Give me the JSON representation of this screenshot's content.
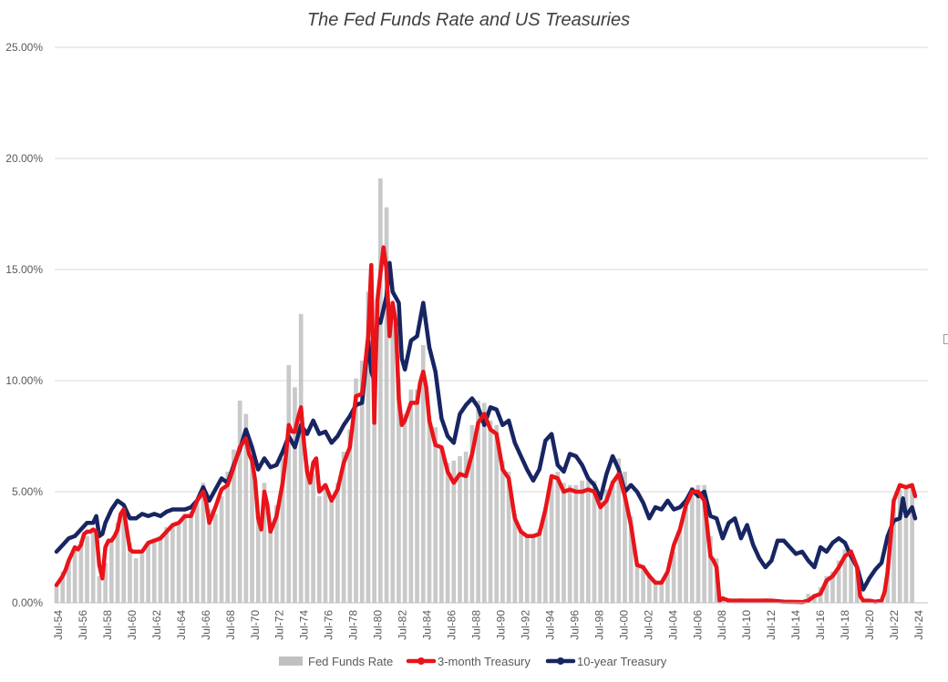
{
  "chart_data": {
    "type": "bar+line",
    "title": "The Fed Funds Rate and US Treasuries",
    "ylim": [
      0,
      25
    ],
    "y_ticks": [
      "0.00%",
      "5.00%",
      "10.00%",
      "15.00%",
      "20.00%",
      "25.00%"
    ],
    "x_ticks": [
      "Jul-54",
      "Jul-56",
      "Jul-58",
      "Jul-60",
      "Jul-62",
      "Jul-64",
      "Jul-66",
      "Jul-68",
      "Jul-70",
      "Jul-72",
      "Jul-74",
      "Jul-76",
      "Jul-78",
      "Jul-80",
      "Jul-82",
      "Jul-84",
      "Jul-86",
      "Jul-88",
      "Jul-90",
      "Jul-92",
      "Jul-94",
      "Jul-96",
      "Jul-98",
      "Jul-00",
      "Jul-02",
      "Jul-04",
      "Jul-06",
      "Jul-08",
      "Jul-10",
      "Jul-12",
      "Jul-14",
      "Jul-16",
      "Jul-18",
      "Jul-20",
      "Jul-22",
      "Jul-24"
    ],
    "x_range": [
      1954.5,
      2024.9
    ],
    "grid": true,
    "legend_position": "bottom",
    "colors": {
      "fed_funds": "#c0c0c0",
      "t3m": "#e8141a",
      "t10y": "#172562",
      "grid": "#d9d9d9"
    },
    "series": [
      {
        "name": "Fed Funds Rate",
        "kind": "bar",
        "x": [
          1954.5,
          1955.0,
          1955.5,
          1956.0,
          1956.5,
          1957.0,
          1957.5,
          1958.0,
          1958.5,
          1959.0,
          1959.5,
          1960.0,
          1960.5,
          1961.0,
          1961.5,
          1962.0,
          1962.5,
          1963.0,
          1963.5,
          1964.0,
          1964.5,
          1965.0,
          1965.5,
          1966.0,
          1966.5,
          1967.0,
          1967.5,
          1968.0,
          1968.5,
          1969.0,
          1969.5,
          1970.0,
          1970.5,
          1971.0,
          1971.5,
          1972.0,
          1972.5,
          1973.0,
          1973.5,
          1974.0,
          1974.5,
          1975.0,
          1975.5,
          1976.0,
          1976.5,
          1977.0,
          1977.5,
          1978.0,
          1978.5,
          1979.0,
          1979.5,
          1980.0,
          1980.5,
          1981.0,
          1981.5,
          1982.0,
          1982.5,
          1983.0,
          1983.5,
          1984.0,
          1984.5,
          1985.0,
          1985.5,
          1986.0,
          1986.5,
          1987.0,
          1987.5,
          1988.0,
          1988.5,
          1989.0,
          1989.5,
          1990.0,
          1990.5,
          1991.0,
          1991.5,
          1992.0,
          1992.5,
          1993.0,
          1993.5,
          1994.0,
          1994.5,
          1995.0,
          1995.5,
          1996.0,
          1996.5,
          1997.0,
          1997.5,
          1998.0,
          1998.5,
          1999.0,
          1999.5,
          2000.0,
          2000.5,
          2001.0,
          2001.5,
          2002.0,
          2002.5,
          2003.0,
          2003.5,
          2004.0,
          2004.5,
          2005.0,
          2005.5,
          2006.0,
          2006.5,
          2007.0,
          2007.5,
          2008.0,
          2008.5,
          2009.0,
          2009.5,
          2010.0,
          2010.5,
          2011.0,
          2011.5,
          2012.0,
          2012.5,
          2013.0,
          2013.5,
          2014.0,
          2014.5,
          2015.0,
          2015.5,
          2016.0,
          2016.5,
          2017.0,
          2017.5,
          2018.0,
          2018.5,
          2019.0,
          2019.5,
          2020.0,
          2020.5,
          2021.0,
          2021.5,
          2022.0,
          2022.5,
          2023.0,
          2023.5,
          2024.0,
          2024.5
        ],
        "values": [
          0.8,
          1.4,
          1.9,
          2.5,
          2.8,
          3.0,
          3.2,
          1.2,
          1.8,
          2.8,
          3.6,
          3.9,
          2.7,
          2.0,
          2.2,
          2.7,
          2.9,
          3.0,
          3.4,
          3.5,
          3.5,
          4.0,
          4.1,
          4.6,
          5.4,
          4.2,
          4.0,
          4.8,
          5.9,
          6.9,
          9.1,
          8.5,
          6.6,
          3.7,
          5.4,
          3.5,
          4.4,
          6.5,
          10.7,
          9.7,
          13.0,
          6.2,
          5.8,
          4.8,
          5.3,
          4.7,
          5.4,
          6.8,
          7.8,
          10.1,
          10.9,
          14.0,
          9.0,
          19.1,
          17.8,
          13.2,
          10.1,
          8.5,
          9.6,
          9.6,
          11.6,
          8.4,
          7.9,
          7.0,
          6.3,
          6.4,
          6.6,
          6.8,
          8.0,
          9.1,
          9.0,
          8.2,
          8.0,
          6.4,
          5.9,
          4.0,
          3.3,
          3.0,
          3.0,
          3.3,
          4.3,
          5.5,
          5.9,
          5.4,
          5.3,
          5.3,
          5.5,
          5.5,
          5.5,
          4.8,
          5.1,
          5.5,
          6.5,
          5.9,
          3.9,
          1.7,
          1.7,
          1.3,
          1.0,
          1.0,
          1.3,
          2.3,
          3.3,
          4.3,
          5.2,
          5.3,
          5.3,
          3.0,
          2.0,
          0.2,
          0.2,
          0.1,
          0.2,
          0.1,
          0.1,
          0.1,
          0.2,
          0.1,
          0.1,
          0.1,
          0.1,
          0.1,
          0.1,
          0.4,
          0.4,
          0.7,
          1.2,
          1.4,
          1.9,
          2.4,
          2.4,
          1.6,
          0.1,
          0.1,
          0.1,
          0.1,
          1.6,
          4.3,
          5.1,
          5.3,
          5.3
        ]
      },
      {
        "name": "3-month Treasury",
        "kind": "line",
        "x": [
          1954.5,
          1954.75,
          1955.0,
          1955.25,
          1955.5,
          1955.75,
          1956.0,
          1956.25,
          1956.5,
          1956.75,
          1957.0,
          1957.25,
          1957.5,
          1957.75,
          1958.0,
          1958.25,
          1958.5,
          1958.75,
          1959.0,
          1959.25,
          1959.5,
          1959.75,
          1960.0,
          1960.25,
          1960.5,
          1960.75,
          1961.0,
          1961.5,
          1962.0,
          1962.5,
          1963.0,
          1963.5,
          1964.0,
          1964.5,
          1965.0,
          1965.5,
          1966.0,
          1966.5,
          1966.75,
          1967.0,
          1967.5,
          1968.0,
          1968.5,
          1969.0,
          1969.5,
          1970.0,
          1970.25,
          1970.5,
          1970.75,
          1971.0,
          1971.25,
          1971.5,
          1971.75,
          1972.0,
          1972.5,
          1973.0,
          1973.25,
          1973.5,
          1973.75,
          1974.0,
          1974.25,
          1974.5,
          1974.75,
          1975.0,
          1975.25,
          1975.5,
          1975.75,
          1976.0,
          1976.5,
          1977.0,
          1977.5,
          1978.0,
          1978.5,
          1979.0,
          1979.5,
          1980.0,
          1980.25,
          1980.5,
          1980.75,
          1981.0,
          1981.25,
          1981.5,
          1981.75,
          1982.0,
          1982.25,
          1982.5,
          1982.75,
          1983.0,
          1983.5,
          1984.0,
          1984.25,
          1984.5,
          1984.75,
          1985.0,
          1985.5,
          1986.0,
          1986.5,
          1987.0,
          1987.5,
          1988.0,
          1988.5,
          1989.0,
          1989.5,
          1990.0,
          1990.5,
          1991.0,
          1991.5,
          1992.0,
          1992.5,
          1993.0,
          1993.5,
          1994.0,
          1994.5,
          1995.0,
          1995.5,
          1996.0,
          1996.5,
          1997.0,
          1997.5,
          1998.0,
          1998.5,
          1999.0,
          1999.5,
          2000.0,
          2000.5,
          2001.0,
          2001.5,
          2002.0,
          2002.5,
          2003.0,
          2003.5,
          2004.0,
          2004.5,
          2005.0,
          2005.5,
          2006.0,
          2006.5,
          2007.0,
          2007.5,
          2008.0,
          2008.25,
          2008.5,
          2008.75,
          2009.0,
          2009.5,
          2010.0,
          2011.0,
          2012.0,
          2013.0,
          2014.0,
          2015.0,
          2015.5,
          2016.0,
          2016.5,
          2017.0,
          2017.5,
          2018.0,
          2018.5,
          2019.0,
          2019.5,
          2020.0,
          2020.25,
          2020.5,
          2021.0,
          2021.5,
          2022.0,
          2022.25,
          2022.5,
          2022.75,
          2023.0,
          2023.5,
          2024.0,
          2024.5,
          2024.75
        ],
        "values": [
          0.8,
          1.0,
          1.2,
          1.5,
          1.9,
          2.2,
          2.5,
          2.4,
          2.6,
          3.1,
          3.2,
          3.2,
          3.3,
          3.2,
          1.7,
          1.1,
          2.5,
          2.8,
          2.8,
          3.0,
          3.3,
          4.0,
          4.2,
          3.3,
          2.4,
          2.3,
          2.3,
          2.3,
          2.7,
          2.8,
          2.9,
          3.2,
          3.5,
          3.6,
          3.9,
          3.9,
          4.6,
          5.0,
          4.5,
          3.6,
          4.3,
          5.1,
          5.3,
          6.1,
          7.0,
          7.4,
          6.7,
          6.4,
          5.5,
          3.8,
          3.3,
          5.0,
          4.4,
          3.2,
          3.9,
          5.4,
          6.5,
          8.0,
          7.7,
          7.7,
          8.3,
          8.8,
          7.2,
          5.9,
          5.4,
          6.3,
          6.5,
          5.0,
          5.3,
          4.6,
          5.1,
          6.3,
          7.0,
          9.3,
          9.4,
          12.0,
          15.2,
          8.1,
          13.6,
          14.8,
          16.0,
          15.0,
          12.0,
          13.5,
          12.7,
          9.2,
          8.0,
          8.2,
          9.0,
          9.0,
          9.9,
          10.4,
          9.7,
          8.2,
          7.1,
          7.0,
          5.9,
          5.4,
          5.8,
          5.7,
          6.7,
          8.1,
          8.5,
          7.8,
          7.6,
          6.0,
          5.6,
          3.8,
          3.2,
          3.0,
          3.0,
          3.1,
          4.2,
          5.7,
          5.6,
          5.0,
          5.1,
          5.0,
          5.0,
          5.1,
          5.0,
          4.3,
          4.6,
          5.4,
          5.8,
          4.8,
          3.5,
          1.7,
          1.6,
          1.2,
          0.9,
          0.9,
          1.4,
          2.6,
          3.3,
          4.4,
          5.0,
          5.0,
          4.6,
          2.1,
          1.9,
          1.6,
          0.1,
          0.2,
          0.1,
          0.1,
          0.1,
          0.1,
          0.1,
          0.05,
          0.04,
          0.03,
          0.1,
          0.3,
          0.4,
          1.0,
          1.2,
          1.6,
          2.1,
          2.3,
          1.6,
          0.3,
          0.1,
          0.1,
          0.05,
          0.1,
          0.5,
          1.4,
          3.0,
          4.6,
          5.3,
          5.2,
          5.3,
          4.8
        ]
      },
      {
        "name": "10-year Treasury",
        "kind": "line",
        "x": [
          1954.5,
          1955.0,
          1955.5,
          1956.0,
          1956.5,
          1957.0,
          1957.5,
          1957.75,
          1958.0,
          1958.25,
          1958.5,
          1958.75,
          1959.0,
          1959.5,
          1960.0,
          1960.5,
          1961.0,
          1961.5,
          1962.0,
          1962.5,
          1963.0,
          1963.5,
          1964.0,
          1964.5,
          1965.0,
          1965.5,
          1966.0,
          1966.5,
          1967.0,
          1967.5,
          1968.0,
          1968.5,
          1969.0,
          1969.5,
          1970.0,
          1970.5,
          1971.0,
          1971.5,
          1972.0,
          1972.5,
          1973.0,
          1973.5,
          1974.0,
          1974.5,
          1975.0,
          1975.5,
          1976.0,
          1976.5,
          1977.0,
          1977.5,
          1978.0,
          1978.5,
          1979.0,
          1979.5,
          1980.0,
          1980.25,
          1980.5,
          1980.75,
          1981.0,
          1981.5,
          1981.75,
          1982.0,
          1982.5,
          1982.75,
          1983.0,
          1983.5,
          1984.0,
          1984.5,
          1985.0,
          1985.5,
          1986.0,
          1986.5,
          1987.0,
          1987.5,
          1988.0,
          1988.5,
          1989.0,
          1989.5,
          1990.0,
          1990.5,
          1991.0,
          1991.5,
          1992.0,
          1992.5,
          1993.0,
          1993.5,
          1994.0,
          1994.5,
          1995.0,
          1995.5,
          1996.0,
          1996.5,
          1997.0,
          1997.5,
          1998.0,
          1998.5,
          1999.0,
          1999.5,
          2000.0,
          2000.5,
          2001.0,
          2001.5,
          2002.0,
          2002.5,
          2003.0,
          2003.5,
          2004.0,
          2004.5,
          2005.0,
          2005.5,
          2006.0,
          2006.5,
          2007.0,
          2007.5,
          2008.0,
          2008.5,
          2009.0,
          2009.5,
          2010.0,
          2010.5,
          2011.0,
          2011.5,
          2012.0,
          2012.5,
          2013.0,
          2013.5,
          2014.0,
          2014.5,
          2015.0,
          2015.5,
          2016.0,
          2016.5,
          2017.0,
          2017.5,
          2018.0,
          2018.5,
          2019.0,
          2019.5,
          2020.0,
          2020.5,
          2021.0,
          2021.5,
          2022.0,
          2022.5,
          2023.0,
          2023.5,
          2023.75,
          2024.0,
          2024.5,
          2024.75
        ],
        "values": [
          2.3,
          2.6,
          2.9,
          3.0,
          3.3,
          3.6,
          3.6,
          3.9,
          3.0,
          3.1,
          3.6,
          3.9,
          4.2,
          4.6,
          4.4,
          3.8,
          3.8,
          4.0,
          3.9,
          4.0,
          3.9,
          4.1,
          4.2,
          4.2,
          4.2,
          4.3,
          4.6,
          5.2,
          4.6,
          5.1,
          5.6,
          5.4,
          6.2,
          6.9,
          7.8,
          7.0,
          6.0,
          6.5,
          6.1,
          6.2,
          6.8,
          7.5,
          7.0,
          8.0,
          7.6,
          8.2,
          7.6,
          7.7,
          7.2,
          7.5,
          8.0,
          8.4,
          8.9,
          9.0,
          11.8,
          10.4,
          10.0,
          12.8,
          12.6,
          13.8,
          15.3,
          14.0,
          13.5,
          11.0,
          10.5,
          11.8,
          12.0,
          13.5,
          11.5,
          10.4,
          8.3,
          7.5,
          7.2,
          8.5,
          8.9,
          9.2,
          8.8,
          8.0,
          8.8,
          8.7,
          8.0,
          8.2,
          7.2,
          6.6,
          6.0,
          5.5,
          6.0,
          7.3,
          7.6,
          6.2,
          5.9,
          6.7,
          6.6,
          6.2,
          5.6,
          5.3,
          4.7,
          5.8,
          6.6,
          6.0,
          5.0,
          5.3,
          5.0,
          4.5,
          3.8,
          4.3,
          4.2,
          4.6,
          4.2,
          4.3,
          4.6,
          5.1,
          4.8,
          5.0,
          3.9,
          3.8,
          2.9,
          3.6,
          3.8,
          2.9,
          3.5,
          2.6,
          2.0,
          1.6,
          1.9,
          2.8,
          2.8,
          2.5,
          2.2,
          2.3,
          1.9,
          1.6,
          2.5,
          2.3,
          2.7,
          2.9,
          2.7,
          2.1,
          1.6,
          0.6,
          1.1,
          1.5,
          1.8,
          3.0,
          3.7,
          3.8,
          4.7,
          3.9,
          4.3,
          3.8
        ]
      }
    ]
  }
}
